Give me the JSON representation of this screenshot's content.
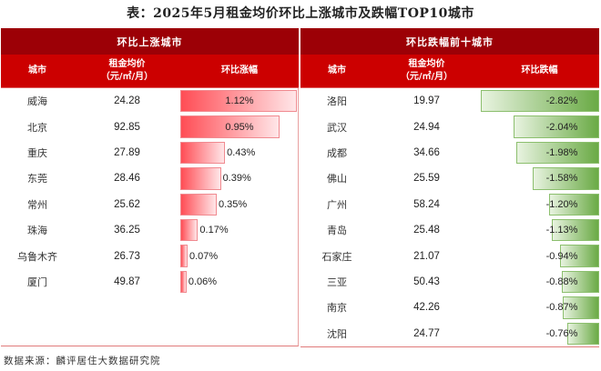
{
  "title": "表：2025年5月租金均价环比上涨城市及跌幅TOP10城市",
  "source": "数据来源：麟评居住大数据研究院",
  "colors": {
    "header_dark": "#9c0006",
    "header_red": "#cc0000",
    "bar_up": "#ff4d55",
    "bar_down": "#6aaa45"
  },
  "left": {
    "group_title": "环比上涨城市",
    "headers": {
      "city": "城市",
      "price_line1": "租金均价",
      "price_line2": "（元/㎡/月）",
      "change": "环比涨幅"
    }
  },
  "right": {
    "group_title": "环比跌幅前十城市",
    "headers": {
      "city": "城市",
      "price_line1": "租金均价",
      "price_line2": "（元/㎡/月）",
      "change": "环比跌幅"
    }
  },
  "chart_data": [
    {
      "type": "table",
      "title": "环比上涨城市",
      "columns": [
        "城市",
        "租金均价（元/㎡/月）",
        "环比涨幅"
      ],
      "rows": [
        {
          "city": "威海",
          "price": "24.28",
          "change": "1.12%",
          "value": 1.12
        },
        {
          "city": "北京",
          "price": "92.85",
          "change": "0.95%",
          "value": 0.95
        },
        {
          "city": "重庆",
          "price": "27.89",
          "change": "0.43%",
          "value": 0.43
        },
        {
          "city": "东莞",
          "price": "28.46",
          "change": "0.39%",
          "value": 0.39
        },
        {
          "city": "常州",
          "price": "25.62",
          "change": "0.35%",
          "value": 0.35
        },
        {
          "city": "珠海",
          "price": "36.25",
          "change": "0.17%",
          "value": 0.17
        },
        {
          "city": "乌鲁木齐",
          "price": "26.73",
          "change": "0.07%",
          "value": 0.07
        },
        {
          "city": "厦门",
          "price": "49.87",
          "change": "0.06%",
          "value": 0.06
        }
      ]
    },
    {
      "type": "table",
      "title": "环比跌幅前十城市",
      "columns": [
        "城市",
        "租金均价（元/㎡/月）",
        "环比跌幅"
      ],
      "rows": [
        {
          "city": "洛阳",
          "price": "19.97",
          "change": "-2.82%",
          "value": -2.82
        },
        {
          "city": "武汉",
          "price": "24.94",
          "change": "-2.04%",
          "value": -2.04
        },
        {
          "city": "成都",
          "price": "34.66",
          "change": "-1.98%",
          "value": -1.98
        },
        {
          "city": "佛山",
          "price": "25.59",
          "change": "-1.58%",
          "value": -1.58
        },
        {
          "city": "广州",
          "price": "58.24",
          "change": "-1.20%",
          "value": -1.2
        },
        {
          "city": "青岛",
          "price": "25.48",
          "change": "-1.13%",
          "value": -1.13
        },
        {
          "city": "石家庄",
          "price": "21.07",
          "change": "-0.94%",
          "value": -0.94
        },
        {
          "city": "三亚",
          "price": "50.43",
          "change": "-0.88%",
          "value": -0.88
        },
        {
          "city": "南京",
          "price": "42.26",
          "change": "-0.87%",
          "value": -0.87
        },
        {
          "city": "沈阳",
          "price": "24.77",
          "change": "-0.76%",
          "value": -0.76
        }
      ]
    }
  ]
}
